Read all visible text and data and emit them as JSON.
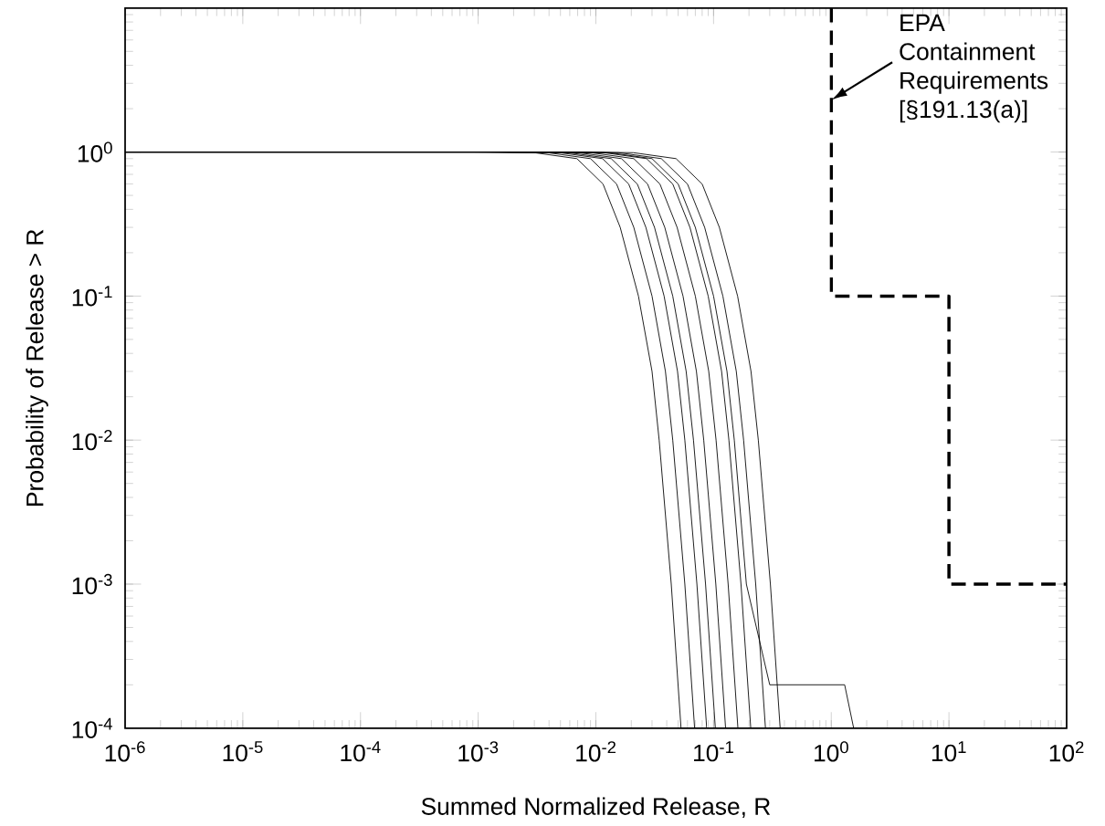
{
  "chart_data": {
    "type": "line",
    "xlabel": "Summed Normalized Release, R",
    "ylabel": "Probability of Release > R",
    "log": "xy",
    "xlim": [
      1e-06,
      100
    ],
    "ylim": [
      0.0001,
      10
    ],
    "xticks": [
      {
        "value": 1e-06,
        "label": "10$^{-6}$"
      },
      {
        "value": 1e-05,
        "label": "10$^{-5}$"
      },
      {
        "value": 0.0001,
        "label": "10$^{-4}$"
      },
      {
        "value": 0.001,
        "label": "10$^{-3}$"
      },
      {
        "value": 0.01,
        "label": "10$^{-2}$"
      },
      {
        "value": 0.1,
        "label": "10$^{-1}$"
      },
      {
        "value": 1,
        "label": "10$^{0}$"
      },
      {
        "value": 10,
        "label": "10$^{1}$"
      },
      {
        "value": 100,
        "label": "10$^{2}$"
      }
    ],
    "yticks": [
      {
        "value": 0.0001,
        "label": "10$^{-4}$"
      },
      {
        "value": 0.001,
        "label": "10$^{-3}$"
      },
      {
        "value": 0.01,
        "label": "10$^{-2}$"
      },
      {
        "value": 0.1,
        "label": "10$^{-1}$"
      },
      {
        "value": 1,
        "label": "10$^{0}$"
      },
      {
        "value": 10,
        "label": null
      }
    ],
    "grid": false,
    "marker": "none",
    "series": [
      {
        "color": "#000000",
        "line_style": "solid",
        "x": [
          1e-06,
          0.00092,
          0.003,
          0.0069,
          0.0115,
          0.0161,
          0.023,
          0.03,
          0.0345,
          0.0437,
          0.0529
        ],
        "values": [
          1,
          1,
          0.99,
          0.9,
          0.6,
          0.3,
          0.1,
          0.03,
          0.01,
          0.001,
          0.0001
        ]
      },
      {
        "color": "#000000",
        "line_style": "solid",
        "x": [
          1e-06,
          0.0012,
          0.0039,
          0.009,
          0.015,
          0.021,
          0.03,
          0.039,
          0.045,
          0.057,
          0.069
        ],
        "values": [
          1,
          1,
          0.99,
          0.9,
          0.6,
          0.3,
          0.1,
          0.03,
          0.01,
          0.001,
          0.0001
        ]
      },
      {
        "color": "#000000",
        "line_style": "solid",
        "x": [
          1e-06,
          0.00152,
          0.00494,
          0.0114,
          0.019,
          0.0266,
          0.038,
          0.0494,
          0.057,
          0.0722,
          0.0874
        ],
        "values": [
          1,
          1,
          0.99,
          0.9,
          0.6,
          0.3,
          0.1,
          0.03,
          0.01,
          0.001,
          0.0001
        ]
      },
      {
        "color": "#000000",
        "line_style": "solid",
        "x": [
          1e-06,
          0.0018,
          0.00585,
          0.0135,
          0.0225,
          0.0315,
          0.045,
          0.0585,
          0.0675,
          0.0855,
          0.1035
        ],
        "values": [
          1,
          1,
          0.99,
          0.9,
          0.6,
          0.3,
          0.1,
          0.03,
          0.01,
          0.001,
          0.0001
        ]
      },
      {
        "color": "#000000",
        "line_style": "solid",
        "x": [
          1e-06,
          0.0022,
          0.00715,
          0.0165,
          0.0275,
          0.0385,
          0.055,
          0.0715,
          0.0825,
          0.1045,
          0.1265
        ],
        "values": [
          1,
          1,
          0.99,
          0.9,
          0.6,
          0.3,
          0.1,
          0.03,
          0.01,
          0.001,
          0.0001
        ]
      },
      {
        "color": "#000000",
        "line_style": "solid",
        "x": [
          1e-06,
          0.0028,
          0.0091,
          0.021,
          0.035,
          0.049,
          0.07,
          0.091,
          0.105,
          0.133,
          0.161
        ],
        "values": [
          1,
          1,
          0.99,
          0.9,
          0.6,
          0.3,
          0.1,
          0.03,
          0.01,
          0.001,
          0.0001
        ]
      },
      {
        "color": "#000000",
        "line_style": "solid",
        "x": [
          1e-06,
          0.0036,
          0.0117,
          0.027,
          0.045,
          0.063,
          0.09,
          0.117,
          0.135,
          0.171,
          0.207
        ],
        "values": [
          1,
          1,
          0.99,
          0.9,
          0.6,
          0.3,
          0.1,
          0.03,
          0.01,
          0.001,
          0.0001
        ]
      },
      {
        "color": "#000000",
        "line_style": "solid",
        "x": [
          1e-06,
          0.004,
          0.013,
          0.03,
          0.05,
          0.07,
          0.1,
          0.13,
          0.15,
          0.19,
          0.3,
          1.3,
          1.55
        ],
        "values": [
          1,
          1,
          0.99,
          0.9,
          0.6,
          0.3,
          0.1,
          0.03,
          0.01,
          0.001,
          0.0002,
          0.0002,
          0.0001
        ]
      },
      {
        "color": "#000000",
        "line_style": "solid",
        "x": [
          1e-06,
          0.0048,
          0.0156,
          0.036,
          0.06,
          0.084,
          0.12,
          0.156,
          0.18,
          0.228,
          0.276
        ],
        "values": [
          1,
          1,
          0.99,
          0.9,
          0.6,
          0.3,
          0.1,
          0.03,
          0.01,
          0.001,
          0.0001
        ]
      },
      {
        "color": "#000000",
        "line_style": "solid",
        "x": [
          1e-06,
          0.0064,
          0.0208,
          0.048,
          0.08,
          0.112,
          0.16,
          0.208,
          0.24,
          0.304,
          0.368
        ],
        "values": [
          1,
          1,
          0.99,
          0.9,
          0.6,
          0.3,
          0.1,
          0.03,
          0.01,
          0.001,
          0.0001
        ]
      },
      {
        "color": "#000000",
        "line_style": "dashed",
        "x": [
          1,
          1,
          10,
          10,
          100
        ],
        "values": [
          10,
          0.1,
          0.1,
          0.001,
          0.001
        ]
      }
    ],
    "annotations": [
      {
        "text": "EPA Containment Requirements [§191.13(a)]",
        "x": 1,
        "y": 2.3
      }
    ]
  }
}
